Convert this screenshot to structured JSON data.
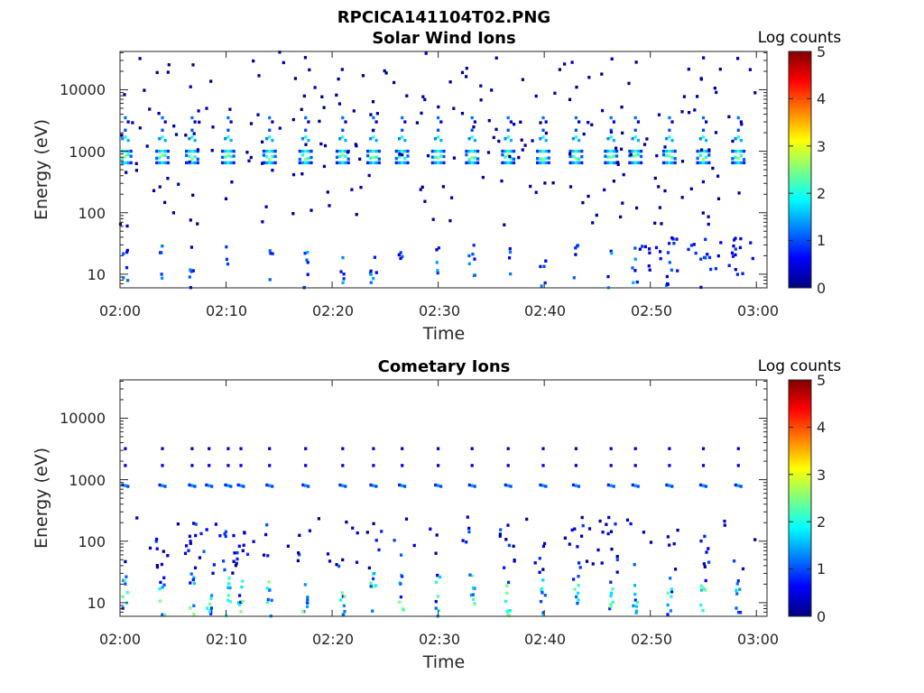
{
  "figure_title": "RPCICA141104T02.PNG",
  "chart_data": [
    {
      "type": "heatmap",
      "title": "Solar Wind Ions",
      "xlabel": "Time",
      "ylabel": "Energy (eV)",
      "x_ticks": [
        "02:00",
        "02:10",
        "02:20",
        "02:30",
        "02:40",
        "02:50",
        "03:00"
      ],
      "x_range_minutes": [
        0,
        61
      ],
      "y_scale": "log",
      "y_ticks": [
        "10",
        "100",
        "1000",
        "10000"
      ],
      "y_range_eV": [
        6,
        42000
      ],
      "colorbar": {
        "title": "Log counts",
        "ticks": [
          "0",
          "1",
          "2",
          "3",
          "4",
          "5"
        ],
        "range": [
          0,
          5
        ],
        "colormap": "jet"
      },
      "sweep_times_min": [
        0.5,
        4.0,
        6.8,
        10.2,
        14.1,
        17.5,
        21.0,
        23.9,
        26.6,
        30.0,
        33.2,
        36.6,
        39.9,
        43.0,
        46.3,
        48.6,
        51.8,
        55.0,
        58.3
      ],
      "features": [
        {
          "name": "solar wind proton peak",
          "energy_eV": 800,
          "log_counts": 2.5
        },
        {
          "name": "alpha peak",
          "energy_eV": 1700,
          "log_counts": 2.0
        },
        {
          "name": "heavy tail",
          "energy_eV": 3500,
          "log_counts": 1.2
        },
        {
          "name": "low energy streaks",
          "energy_range_eV": [
            6,
            30
          ],
          "log_counts": 0.5
        }
      ]
    },
    {
      "type": "heatmap",
      "title": "Cometary Ions",
      "xlabel": "Time",
      "ylabel": "Energy (eV)",
      "x_ticks": [
        "02:00",
        "02:10",
        "02:20",
        "02:30",
        "02:40",
        "02:50",
        "03:00"
      ],
      "x_range_minutes": [
        0,
        61
      ],
      "y_scale": "log",
      "y_ticks": [
        "10",
        "100",
        "1000",
        "10000"
      ],
      "y_range_eV": [
        6,
        42000
      ],
      "colorbar": {
        "title": "Log counts",
        "ticks": [
          "0",
          "1",
          "2",
          "3",
          "4",
          "5"
        ],
        "range": [
          0,
          5
        ],
        "colormap": "jet"
      },
      "sweep_times_min": [
        0.5,
        4.0,
        6.8,
        8.4,
        10.2,
        11.4,
        14.1,
        17.5,
        21.0,
        23.9,
        26.6,
        30.0,
        33.2,
        36.6,
        39.9,
        43.0,
        46.3,
        48.6,
        51.8,
        55.0,
        58.3
      ],
      "features": [
        {
          "name": "proton peak",
          "energy_eV": 800,
          "log_counts": 1.5
        },
        {
          "name": "upper band",
          "energy_range_eV": [
            1500,
            3500
          ],
          "log_counts": 0.8
        },
        {
          "name": "cometary low energy bursts",
          "energy_range_eV": [
            6,
            30
          ],
          "log_counts": 2.2
        },
        {
          "name": "intermediate energy bursts",
          "energy_range_eV": [
            30,
            200
          ],
          "log_counts": 1.0
        }
      ]
    }
  ]
}
